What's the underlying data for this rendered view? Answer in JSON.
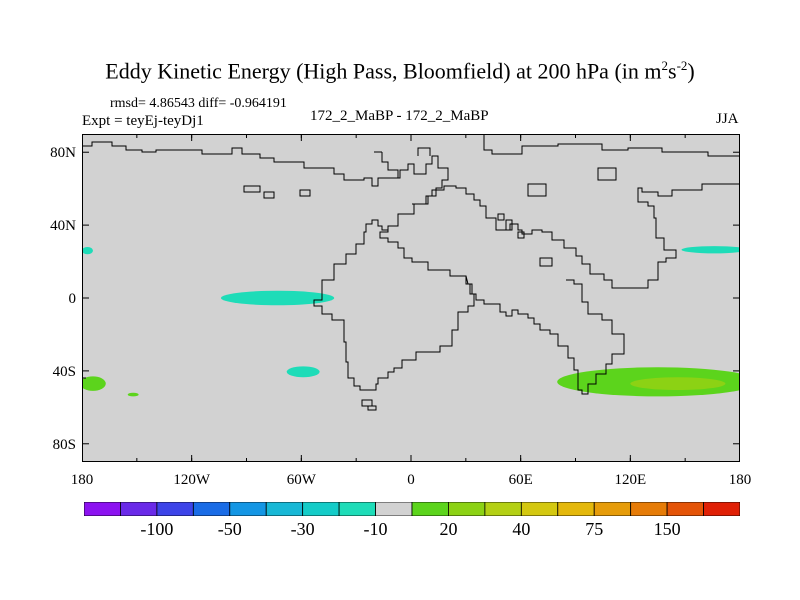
{
  "chart_data": {
    "type": "heatmap",
    "title_main": "Eddy Kinetic Energy (High Pass, Bloomfield) at 200 hPa (in m",
    "title_sup1": "2",
    "title_mid": "s",
    "title_sup2": "-2",
    "title_end": ")",
    "stats_text": "rmsd= 4.86543 diff= -0.964191",
    "expt_label": "Expt = teyEj-teyDj1",
    "center_label": "172_2_MaBP - 172_2_MaBP",
    "season_label": "JJA",
    "x_ticks": [
      {
        "value": -180,
        "label": "180"
      },
      {
        "value": -120,
        "label": "120W"
      },
      {
        "value": -60,
        "label": "60W"
      },
      {
        "value": 0,
        "label": "0"
      },
      {
        "value": 60,
        "label": "60E"
      },
      {
        "value": 120,
        "label": "120E"
      },
      {
        "value": 180,
        "label": "180"
      }
    ],
    "y_ticks": [
      {
        "value": 80,
        "label": "80N"
      },
      {
        "value": 40,
        "label": "40N"
      },
      {
        "value": 0,
        "label": "0"
      },
      {
        "value": -40,
        "label": "40S"
      },
      {
        "value": -80,
        "label": "80S"
      }
    ],
    "xlim": [
      -180,
      180
    ],
    "ylim": [
      -90,
      90
    ],
    "background_color": "#d2d2d2",
    "colorbar": {
      "colors": [
        "#8c12f0",
        "#6a2ae8",
        "#3d44e8",
        "#1a6ce6",
        "#1496e4",
        "#18b8d6",
        "#14ccc8",
        "#1edcb8",
        "#d2d2d2",
        "#5cd41c",
        "#8cd214",
        "#b4d014",
        "#d4c810",
        "#e4b80c",
        "#e69c0a",
        "#e67c08",
        "#e45408",
        "#e02006"
      ],
      "labels": [
        {
          "text": "-100",
          "boundary": 2
        },
        {
          "text": "-50",
          "boundary": 4
        },
        {
          "text": "-30",
          "boundary": 6
        },
        {
          "text": "-10",
          "boundary": 8
        },
        {
          "text": "20",
          "boundary": 10
        },
        {
          "text": "40",
          "boundary": 12
        },
        {
          "text": "75",
          "boundary": 14
        },
        {
          "text": "150",
          "boundary": 16
        }
      ]
    },
    "anomalies": [
      {
        "name": "east-pacific-negative",
        "lon_center": -73,
        "lat_center": 0,
        "lon_radius": 31,
        "lat_radius": 4,
        "color": "#1edcb8"
      },
      {
        "name": "south-pacific-negative",
        "lon_center": -59,
        "lat_center": -40.5,
        "lon_radius": 9,
        "lat_radius": 3,
        "color": "#1edcb8"
      },
      {
        "name": "north-pacific-negative",
        "lon_center": 166,
        "lat_center": 26.5,
        "lon_radius": 18,
        "lat_radius": 2,
        "color": "#1edcb8"
      },
      {
        "name": "date-line-west-negative",
        "lon_center": -177,
        "lat_center": 26,
        "lon_radius": 3,
        "lat_radius": 2,
        "color": "#1edcb8"
      },
      {
        "name": "southern-ocean-positive",
        "lon_center": 135,
        "lat_center": -46,
        "lon_radius": 55,
        "lat_radius": 8,
        "color": "#5cd41c"
      },
      {
        "name": "southern-ocean-positive-core",
        "lon_center": 146,
        "lat_center": -47,
        "lon_radius": 26,
        "lat_radius": 3.5,
        "color": "#8cd214"
      },
      {
        "name": "south-date-line-positive",
        "lon_center": -174,
        "lat_center": -47,
        "lon_radius": 7,
        "lat_radius": 4,
        "color": "#5cd41c"
      },
      {
        "name": "small-south-positive",
        "lon_center": -152,
        "lat_center": -53,
        "lon_radius": 3,
        "lat_radius": 1,
        "color": "#5cd41c"
      }
    ]
  }
}
